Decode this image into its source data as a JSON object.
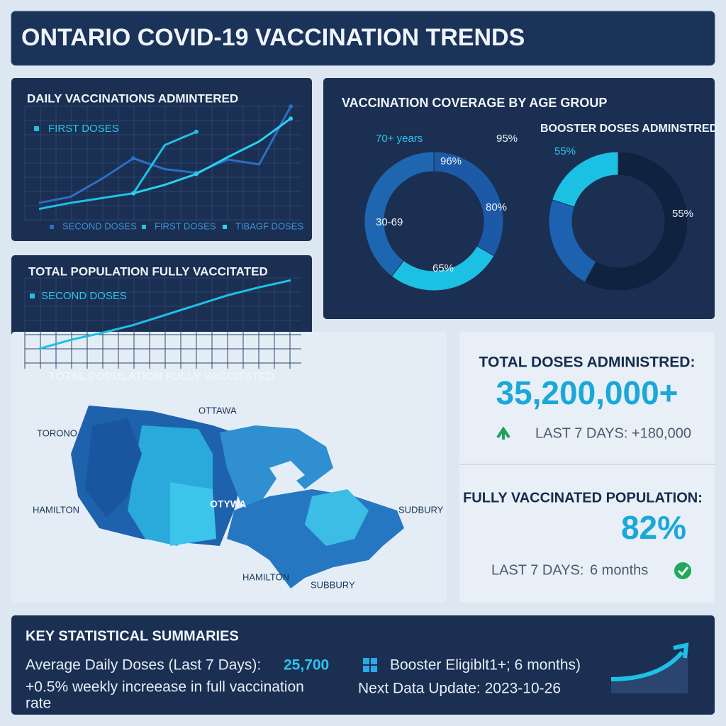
{
  "header": {
    "title": "ONTARIO COVID-19 VACCINATION TRENDS"
  },
  "chart_data": [
    {
      "type": "line",
      "title": "DAILY VACCINATIONS ADMINTERED",
      "annotation": "FIRST DOSES",
      "x": [
        0,
        1,
        2,
        3,
        4,
        5,
        6,
        7,
        8
      ],
      "xlim": [
        0,
        8
      ],
      "ylim": [
        0,
        100
      ],
      "series": [
        {
          "name": "SECOND DOSES",
          "color": "#2a6fc4",
          "values": [
            14,
            19,
            34,
            51,
            42,
            39,
            50,
            46,
            94
          ]
        },
        {
          "name": "FIRST DOSES",
          "color": "#1fc0e6",
          "values": [
            9,
            14,
            18,
            22,
            62,
            73,
            null,
            null,
            null
          ]
        },
        {
          "name": "TIBAGF DOSES",
          "color": "#2ad0f0",
          "values": [
            null,
            null,
            null,
            22,
            29,
            38,
            52,
            65,
            84
          ]
        }
      ]
    },
    {
      "type": "line",
      "title": "TOTAL POPULATION FULLY VACCITATED",
      "x_label": "TOTAL POPULATION FULLY VACCITATED",
      "x": [
        0,
        1,
        2,
        3,
        4,
        5,
        6,
        7,
        8
      ],
      "xlim": [
        0,
        8
      ],
      "ylim": [
        0,
        100
      ],
      "series": [
        {
          "name": "SECOND DOSES",
          "color": "#1fc0e6",
          "values": [
            20,
            29,
            36,
            44,
            54,
            64,
            74,
            82,
            89
          ]
        }
      ]
    },
    {
      "type": "donut",
      "title": "VACCINATION COVERAGE BY AGE GROUP",
      "categories": [
        null,
        "30-69",
        "70+ years"
      ],
      "values": [
        80,
        65,
        95
      ],
      "value_labels": [
        "80%",
        "65%",
        "95%"
      ],
      "colors": [
        "#1c5aa8",
        "#1cc0e2",
        "#1f66b0"
      ],
      "annotations": [
        "96%"
      ]
    },
    {
      "type": "donut",
      "title": "BOOSTER DOSES ADMINSTRED",
      "values": [
        58,
        22,
        20
      ],
      "colors": [
        "#0f223f",
        "#1c62b0",
        "#1cc0e2"
      ],
      "annotations": [
        "55%",
        "55%"
      ]
    }
  ],
  "stats": {
    "total_title": "TOTAL DOSES ADMINISTRED:",
    "total_value": "35,200,000+",
    "total_change": "LAST 7 DAYS: +180,000",
    "full_title": "FULLY VACCINATED POPULATION:",
    "full_value": "82%",
    "full_label": "LAST 7 DAYS:",
    "full_period": "6 months"
  },
  "map": {
    "labels": [
      "TORONO",
      "OTTAWA",
      "HAMILTON",
      "OTYWA",
      "SUDBURY",
      "HAMILTON",
      "SUBBURY"
    ]
  },
  "summary": {
    "title": "KEY STATISTICAL SUMMARIES",
    "avg_label": "Average Daily Doses (Last 7 Days):",
    "avg_value": "25,700",
    "increase_line1": "+0.5% weekly increease in full vaccination",
    "increase_line2": "rate",
    "booster": "Booster Eligiblt1+; 6 months)",
    "update": "Next Data Update: 2023-10-26"
  }
}
